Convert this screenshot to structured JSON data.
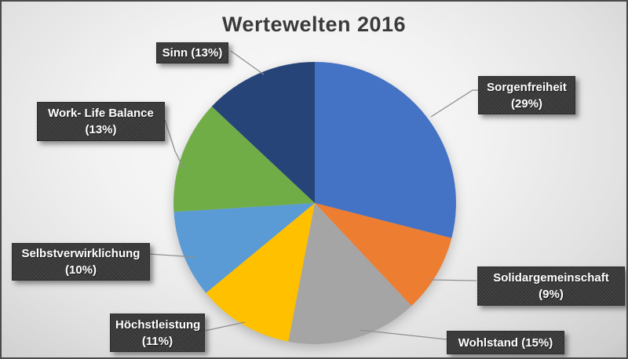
{
  "title": "Wertewelten 2016",
  "chart_data": {
    "type": "pie",
    "title": "Wertewelten 2016",
    "unit": "percent",
    "start_angle_deg": 0,
    "direction": "clockwise",
    "legend_position": "none",
    "slices": [
      {
        "name": "Sorgenfreiheit",
        "value": 29,
        "color": "#4472C4",
        "line1": "Sorgenfreiheit",
        "line2": "(29%)"
      },
      {
        "name": "Solidargemeinschaft",
        "value": 9,
        "color": "#ED7D31",
        "line1": "Solidargemeinschaft",
        "line2": "(9%)"
      },
      {
        "name": "Wohlstand",
        "value": 15,
        "color": "#A5A5A5",
        "line1": "Wohlstand (15%)",
        "line2": ""
      },
      {
        "name": "Höchstleistung",
        "value": 11,
        "color": "#FFC000",
        "line1": "Höchstleistung",
        "line2": "(11%)"
      },
      {
        "name": "Selbstverwirklichung",
        "value": 10,
        "color": "#5B9BD5",
        "line1": "Selbstverwirklichung",
        "line2": "(10%)"
      },
      {
        "name": "Work- Life Balance",
        "value": 13,
        "color": "#70AD47",
        "line1": "Work- Life Balance",
        "line2": "(13%)"
      },
      {
        "name": "Sinn",
        "value": 13,
        "color": "#264478",
        "line1": "Sinn (13%)",
        "line2": ""
      }
    ],
    "callout_box_color": "#3d3d3d",
    "callout_text_color": "#ffffff",
    "leader_line_color": "#8f8f8f"
  }
}
